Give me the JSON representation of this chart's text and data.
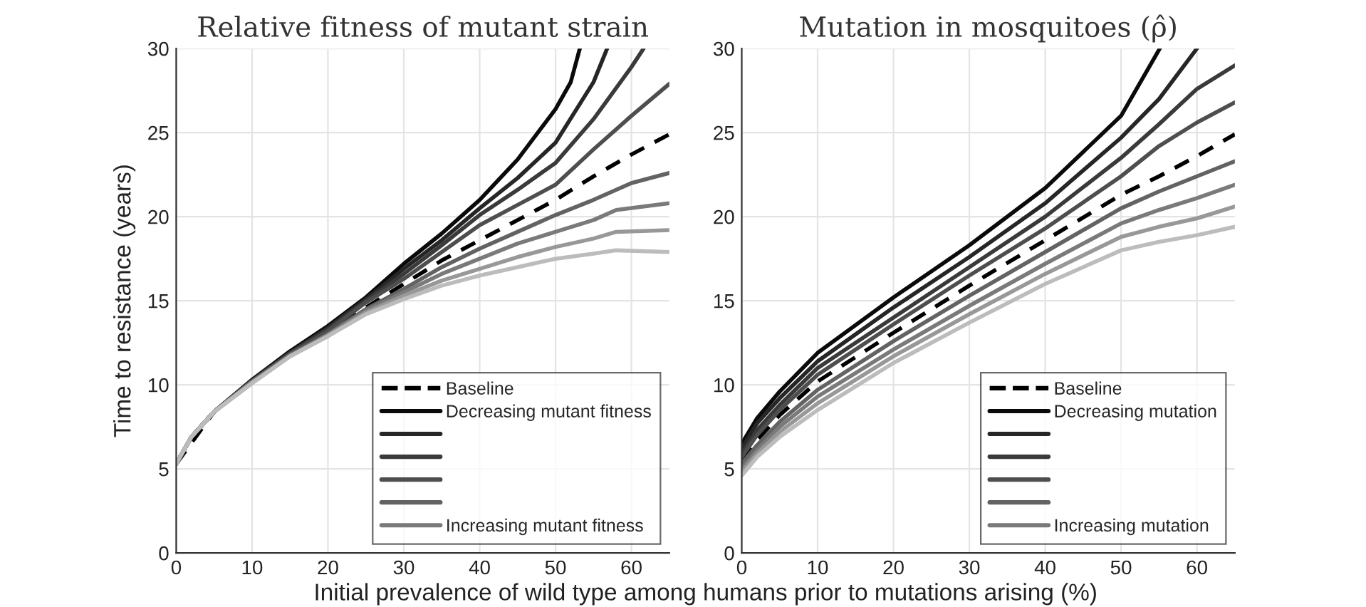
{
  "chart_data": [
    {
      "type": "line",
      "title": "Relative fitness of mutant strain",
      "xlabel": "Initial prevalence of wild type among humans prior to mutations arising (%)",
      "ylabel": "Time to resistance (years)",
      "xlim": [
        0,
        65
      ],
      "xticks": [
        0,
        10,
        20,
        30,
        40,
        50,
        60
      ],
      "ylim": [
        0,
        30
      ],
      "yticks": [
        0,
        5,
        10,
        15,
        20,
        25,
        30
      ],
      "grid": true,
      "legend": "bottom right",
      "line_style": "solid",
      "marker": "none",
      "series": [
        {
          "name": "Baseline",
          "color": "#000000",
          "line_style": "dashed",
          "x": [
            0,
            5,
            10,
            15,
            20,
            25,
            30,
            35,
            40,
            45,
            50,
            55,
            60,
            65
          ],
          "values": [
            5.3,
            8.4,
            10.2,
            11.8,
            13.1,
            14.6,
            16.0,
            17.4,
            18.6,
            19.8,
            21.0,
            22.4,
            23.7,
            24.9
          ]
        },
        {
          "name": "Decreasing mutant fitness",
          "color": "#0a0a0a",
          "x": [
            0,
            2,
            5,
            10,
            15,
            20,
            25,
            30,
            35,
            40,
            45,
            50,
            52,
            53.2
          ],
          "values": [
            5.3,
            6.9,
            8.4,
            10.3,
            12.0,
            13.5,
            15.2,
            17.2,
            19.0,
            21.0,
            23.4,
            26.4,
            28.0,
            30.0
          ]
        },
        {
          "color": "#262626",
          "x": [
            0,
            2,
            5,
            10,
            15,
            20,
            25,
            30,
            35,
            40,
            45,
            50,
            55,
            56.8
          ],
          "values": [
            5.3,
            6.9,
            8.4,
            10.3,
            11.9,
            13.4,
            15.1,
            16.9,
            18.6,
            20.5,
            22.3,
            24.4,
            28.0,
            30.0
          ]
        },
        {
          "color": "#3a3a3a",
          "x": [
            0,
            2,
            5,
            10,
            15,
            20,
            25,
            30,
            35,
            40,
            45,
            50,
            55,
            60,
            61.6
          ],
          "values": [
            5.3,
            6.9,
            8.4,
            10.2,
            11.9,
            13.3,
            15.0,
            16.6,
            18.3,
            20.1,
            21.6,
            23.2,
            25.8,
            28.9,
            30.0
          ]
        },
        {
          "color": "#4e4e4e",
          "x": [
            0,
            2,
            5,
            10,
            15,
            20,
            25,
            30,
            35,
            40,
            45,
            50,
            55,
            60,
            65
          ],
          "values": [
            5.3,
            6.9,
            8.4,
            10.2,
            11.8,
            13.2,
            14.9,
            16.3,
            17.9,
            19.5,
            20.7,
            21.9,
            24.0,
            26.0,
            27.9
          ]
        },
        {
          "color": "#636363",
          "x": [
            0,
            2,
            5,
            10,
            15,
            20,
            25,
            30,
            35,
            40,
            45,
            50,
            55,
            60,
            65
          ],
          "values": [
            5.3,
            6.9,
            8.4,
            10.2,
            11.8,
            13.0,
            14.5,
            15.7,
            17.0,
            18.1,
            19.1,
            20.1,
            21.0,
            22.0,
            22.6
          ]
        },
        {
          "name": "Increasing mutant fitness",
          "color": "#7a7a7a",
          "x": [
            0,
            2,
            5,
            10,
            15,
            20,
            25,
            30,
            35,
            40,
            45,
            50,
            55,
            58,
            65
          ],
          "values": [
            5.3,
            6.9,
            8.4,
            10.2,
            11.7,
            13.0,
            14.4,
            15.5,
            16.6,
            17.5,
            18.4,
            19.1,
            19.8,
            20.4,
            20.8
          ]
        },
        {
          "color": "#989898",
          "x": [
            0,
            2,
            5,
            10,
            15,
            20,
            25,
            30,
            35,
            40,
            45,
            50,
            55,
            58,
            65
          ],
          "values": [
            5.3,
            6.9,
            8.4,
            10.1,
            11.7,
            12.9,
            14.3,
            15.3,
            16.2,
            16.9,
            17.6,
            18.2,
            18.7,
            19.1,
            19.2
          ]
        },
        {
          "color": "#bcbcbc",
          "x": [
            0,
            2,
            5,
            10,
            15,
            20,
            25,
            30,
            35,
            40,
            45,
            50,
            55,
            58,
            65
          ],
          "values": [
            5.3,
            6.9,
            8.4,
            10.1,
            11.7,
            12.9,
            14.2,
            15.1,
            15.9,
            16.5,
            17.0,
            17.5,
            17.8,
            18.0,
            17.9
          ]
        }
      ]
    },
    {
      "type": "line",
      "title": "Mutation in mosquitoes (ρ̂)",
      "xlim": [
        0,
        65
      ],
      "xticks": [
        0,
        10,
        20,
        30,
        40,
        50,
        60
      ],
      "ylim": [
        0,
        30
      ],
      "yticks": [
        0,
        5,
        10,
        15,
        20,
        25,
        30
      ],
      "grid": true,
      "legend": "bottom right",
      "line_style": "solid",
      "marker": "none",
      "series": [
        {
          "name": "Baseline",
          "color": "#000000",
          "line_style": "dashed",
          "x": [
            0,
            2,
            5,
            10,
            20,
            30,
            40,
            50,
            55,
            60,
            65
          ],
          "values": [
            5.5,
            6.7,
            8.2,
            10.2,
            13.1,
            15.9,
            18.6,
            21.3,
            22.4,
            23.6,
            24.9
          ]
        },
        {
          "name": "Decreasing mutation",
          "color": "#0a0a0a",
          "x": [
            0,
            2,
            5,
            10,
            20,
            30,
            40,
            50,
            55.1
          ],
          "values": [
            6.5,
            8.0,
            9.6,
            11.9,
            15.2,
            18.3,
            21.7,
            26.0,
            30.0
          ]
        },
        {
          "color": "#262626",
          "x": [
            0,
            2,
            5,
            10,
            20,
            30,
            40,
            50,
            55,
            60
          ],
          "values": [
            6.2,
            7.7,
            9.2,
            11.4,
            14.6,
            17.6,
            20.8,
            24.7,
            27.0,
            30.0
          ]
        },
        {
          "color": "#3a3a3a",
          "x": [
            0,
            2,
            5,
            10,
            20,
            30,
            40,
            50,
            55,
            60,
            65
          ],
          "values": [
            5.9,
            7.3,
            8.8,
            11.0,
            14.0,
            17.0,
            20.0,
            23.5,
            25.5,
            27.6,
            29.0
          ]
        },
        {
          "color": "#4e4e4e",
          "x": [
            0,
            2,
            5,
            10,
            20,
            30,
            40,
            50,
            55,
            60,
            65
          ],
          "values": [
            5.7,
            7.0,
            8.5,
            10.6,
            13.6,
            16.5,
            19.3,
            22.4,
            24.2,
            25.6,
            26.8
          ]
        },
        {
          "color": "#636363",
          "x": [
            0,
            2,
            5,
            10,
            20,
            30,
            40,
            50,
            55,
            60,
            65
          ],
          "values": [
            5.3,
            6.4,
            7.8,
            9.7,
            12.6,
            15.3,
            17.9,
            20.5,
            21.5,
            22.4,
            23.3
          ]
        },
        {
          "name": "Increasing mutation",
          "color": "#7a7a7a",
          "x": [
            0,
            2,
            5,
            10,
            20,
            30,
            40,
            50,
            55,
            60,
            65
          ],
          "values": [
            5.0,
            6.1,
            7.5,
            9.3,
            12.1,
            14.7,
            17.2,
            19.6,
            20.4,
            21.1,
            21.9
          ]
        },
        {
          "color": "#989898",
          "x": [
            0,
            2,
            5,
            10,
            20,
            30,
            40,
            50,
            55,
            60,
            65
          ],
          "values": [
            4.8,
            5.9,
            7.2,
            8.9,
            11.7,
            14.2,
            16.6,
            18.8,
            19.4,
            19.9,
            20.6
          ]
        },
        {
          "color": "#bcbcbc",
          "x": [
            0,
            2,
            5,
            10,
            20,
            30,
            40,
            50,
            55,
            60,
            65
          ],
          "values": [
            4.6,
            5.7,
            6.9,
            8.5,
            11.3,
            13.7,
            16.0,
            18.0,
            18.5,
            18.9,
            19.4
          ]
        }
      ]
    }
  ]
}
